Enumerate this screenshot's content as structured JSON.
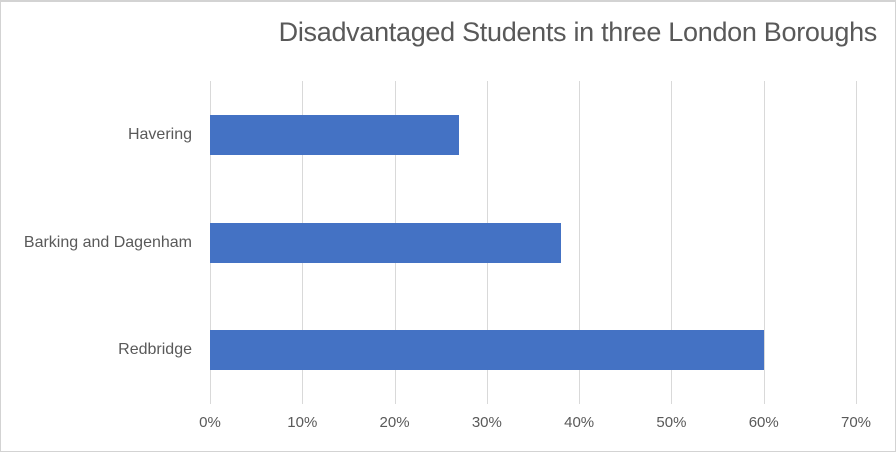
{
  "chart_data": {
    "type": "bar",
    "orientation": "horizontal",
    "title": "Disadvantaged Students in three London Boroughs",
    "categories": [
      "Havering",
      "Barking and Dagenham",
      "Redbridge"
    ],
    "values": [
      27,
      38,
      60
    ],
    "value_unit": "%",
    "xlabel": "",
    "ylabel": "",
    "xlim": [
      0,
      70
    ],
    "x_ticks": [
      0,
      10,
      20,
      30,
      40,
      50,
      60,
      70
    ],
    "x_tick_labels": [
      "0%",
      "10%",
      "20%",
      "30%",
      "40%",
      "50%",
      "60%",
      "70%"
    ],
    "grid": true,
    "legend": false,
    "bar_color": "#4472C4",
    "gridline_color": "#D9D9D9",
    "text_color": "#595959",
    "border_color": "#D3D3D3",
    "background": "#FFFFFF"
  }
}
